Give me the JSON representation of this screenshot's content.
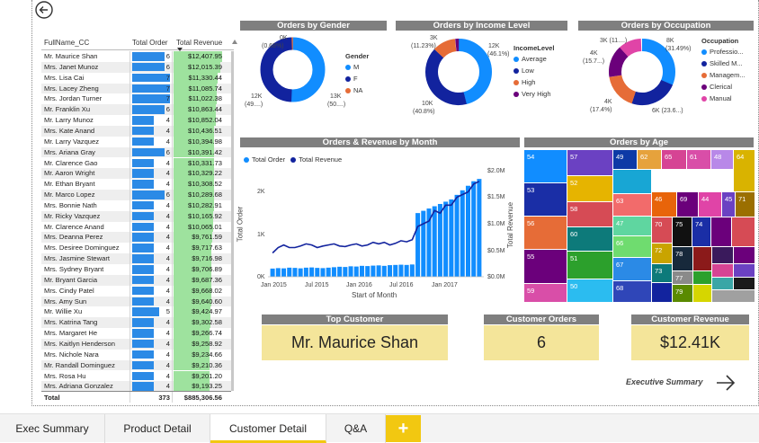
{
  "table": {
    "headers": [
      "FullName_CC",
      "Total Order",
      "Total Revenue"
    ],
    "rows": [
      {
        "name": "Mr. Maurice Shan",
        "orders": "6",
        "revenue": "$12,407.95"
      },
      {
        "name": "Mrs. Janet Munoz",
        "orders": "6",
        "revenue": "$12,015.39"
      },
      {
        "name": "Mrs. Lisa Cai",
        "orders": "7",
        "revenue": "$11,330.44"
      },
      {
        "name": "Mrs. Lacey Zheng",
        "orders": "7",
        "revenue": "$11,085.74"
      },
      {
        "name": "Mrs. Jordan Turner",
        "orders": "7",
        "revenue": "$11,022.38"
      },
      {
        "name": "Mr. Franklin Xu",
        "orders": "6",
        "revenue": "$10,863.44"
      },
      {
        "name": "Mr. Larry Munoz",
        "orders": "4",
        "revenue": "$10,852.04"
      },
      {
        "name": "Mrs. Kate Anand",
        "orders": "4",
        "revenue": "$10,436.51"
      },
      {
        "name": "Mr. Larry Vazquez",
        "orders": "4",
        "revenue": "$10,394.98"
      },
      {
        "name": "Mrs. Ariana Gray",
        "orders": "6",
        "revenue": "$10,391.42"
      },
      {
        "name": "Mr. Clarence Gao",
        "orders": "4",
        "revenue": "$10,331.73"
      },
      {
        "name": "Mr. Aaron Wright",
        "orders": "4",
        "revenue": "$10,329.22"
      },
      {
        "name": "Mr. Ethan Bryant",
        "orders": "4",
        "revenue": "$10,308.52"
      },
      {
        "name": "Mr. Marco Lopez",
        "orders": "6",
        "revenue": "$10,289.68"
      },
      {
        "name": "Mrs. Bonnie Nath",
        "orders": "4",
        "revenue": "$10,282.91"
      },
      {
        "name": "Mr. Ricky Vazquez",
        "orders": "4",
        "revenue": "$10,165.92"
      },
      {
        "name": "Mr. Clarence Anand",
        "orders": "4",
        "revenue": "$10,065.01"
      },
      {
        "name": "Mrs. Deanna Perez",
        "orders": "4",
        "revenue": "$9,761.59"
      },
      {
        "name": "Mrs. Desiree Dominguez",
        "orders": "4",
        "revenue": "$9,717.63"
      },
      {
        "name": "Mrs. Jasmine Stewart",
        "orders": "4",
        "revenue": "$9,716.98"
      },
      {
        "name": "Mrs. Sydney Bryant",
        "orders": "4",
        "revenue": "$9,706.89"
      },
      {
        "name": "Mr. Bryant Garcia",
        "orders": "4",
        "revenue": "$9,687.36"
      },
      {
        "name": "Mrs. Cindy Patel",
        "orders": "4",
        "revenue": "$9,668.02"
      },
      {
        "name": "Mrs. Amy Sun",
        "orders": "4",
        "revenue": "$9,640.60"
      },
      {
        "name": "Mr. Willie Xu",
        "orders": "5",
        "revenue": "$9,424.97"
      },
      {
        "name": "Mrs. Katrina Tang",
        "orders": "4",
        "revenue": "$9,302.58"
      },
      {
        "name": "Mrs. Margaret He",
        "orders": "4",
        "revenue": "$9,266.74"
      },
      {
        "name": "Mrs. Kaitlyn Henderson",
        "orders": "4",
        "revenue": "$9,258.92"
      },
      {
        "name": "Mrs. Nichole Nara",
        "orders": "4",
        "revenue": "$9,234.66"
      },
      {
        "name": "Mr. Randall Dominguez",
        "orders": "4",
        "revenue": "$9,210.36"
      },
      {
        "name": "Mrs. Rosa Hu",
        "orders": "4",
        "revenue": "$9,201.20"
      },
      {
        "name": "Mrs. Adriana Gonzalez",
        "orders": "4",
        "revenue": "$9,193.25"
      }
    ],
    "total_label": "Total",
    "total_orders": "373",
    "total_revenue": "$885,306.56"
  },
  "gender": {
    "title": "Orders by Gender",
    "legend_title": "Gender",
    "legend": [
      "M",
      "F",
      "NA"
    ],
    "labels": {
      "top": "0K",
      "top_pct": "(0.68%)",
      "left": "12K",
      "left_pct": "(49....)",
      "right": "13K",
      "right_pct": "(50....)"
    }
  },
  "income": {
    "title": "Orders by Income Level",
    "legend_title": "IncomeLevel",
    "legend": [
      "Average",
      "Low",
      "High",
      "Very High"
    ],
    "labels": {
      "tl": "3K",
      "tl_pct": "(11.23%)",
      "tr": "12K",
      "tr_pct": "(46.1%)",
      "bl": "10K",
      "bl_pct": "(40.8%)"
    }
  },
  "occupation": {
    "title": "Orders by Occupation",
    "legend_title": "Occupation",
    "legend": [
      "Professio...",
      "Skilled M...",
      "Managem...",
      "Clerical",
      "Manual"
    ],
    "labels": {
      "tl": "3K (11....)",
      "tl2": "4K",
      "tl2b": "(15.7...)",
      "tr": "8K",
      "tr_pct": "(31.49%)",
      "bl": "4K",
      "bl_pct": "(17.4%)",
      "br": "6K (23.6...)"
    }
  },
  "orders_revenue": {
    "title": "Orders & Revenue by Month",
    "legend": [
      "Total Order",
      "Total Revenue"
    ],
    "y_left_label": "Total Order",
    "y_right_label": "Total Revenue",
    "x_label": "Start of Month",
    "y_left_ticks": [
      "0K",
      "1K",
      "2K"
    ],
    "y_right_ticks": [
      "$0.0M",
      "$0.5M",
      "$1.0M",
      "$1.5M",
      "$2.0M"
    ],
    "x_ticks": [
      "Jan 2015",
      "Jul 2015",
      "Jan 2016",
      "Jul 2016",
      "Jan 2017"
    ]
  },
  "age": {
    "title": "Orders by Age",
    "labels": [
      "54",
      "57",
      "49",
      "62",
      "65",
      "61",
      "48",
      "64",
      "53",
      "52",
      "58",
      "63",
      "46",
      "69",
      "44",
      "45",
      "71",
      "56",
      "60",
      "47",
      "70",
      "75",
      "74",
      "55",
      "51",
      "66",
      "78",
      "67",
      "72",
      "77",
      "59",
      "50",
      "68",
      "73",
      "79"
    ]
  },
  "top_customer": {
    "title": "Top Customer",
    "value": "Mr. Maurice Shan"
  },
  "customer_orders": {
    "title": "Customer Orders",
    "value": "6"
  },
  "customer_revenue": {
    "title": "Customer Revenue",
    "value": "$12.41K"
  },
  "exec_link": "Executive Summary",
  "tabs": [
    "Exec Summary",
    "Product Detail",
    "Customer Detail",
    "Q&A"
  ],
  "add_tab": "+",
  "colors": {
    "blue": "#118dff",
    "navy": "#12239e",
    "orange": "#e66c37",
    "purple": "#6b007b",
    "pink": "#e044a7",
    "card": "#f4e59a",
    "yellow": "#f2c811"
  }
}
